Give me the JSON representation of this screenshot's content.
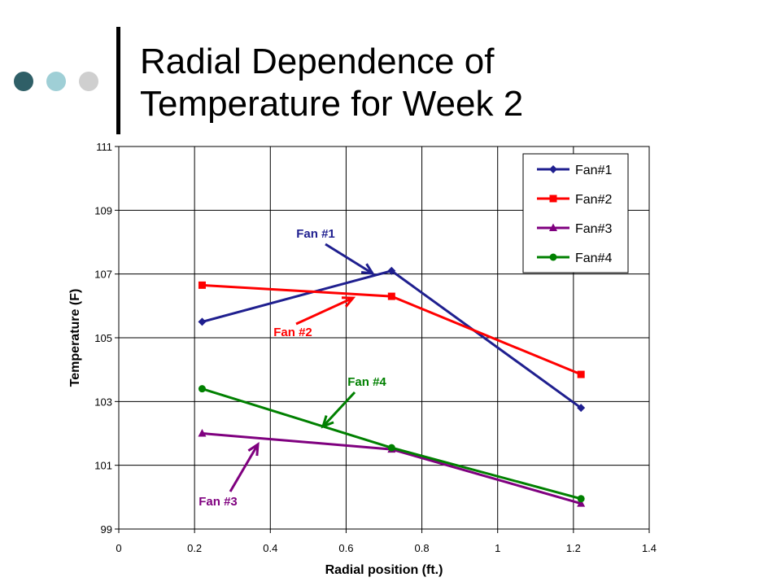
{
  "slide": {
    "title_line1": "Radial Dependence of",
    "title_line2": "Temperature for Week 2",
    "bullet_colors": [
      "#2f5f67",
      "#9fcfd6",
      "#cfcfcf"
    ]
  },
  "chart_data": {
    "type": "line",
    "xlabel": "Radial position (ft.)",
    "ylabel": "Temperature (F)",
    "xlim": [
      0,
      1.4
    ],
    "ylim": [
      99,
      111
    ],
    "xticks": [
      "0",
      "0.2",
      "0.4",
      "0.6",
      "0.8",
      "1",
      "1.2",
      "1.4"
    ],
    "yticks": [
      "99",
      "101",
      "103",
      "105",
      "107",
      "109",
      "111"
    ],
    "grid": true,
    "legend_position": "top-right",
    "series": [
      {
        "name": "Fan#1",
        "color": "#1f1f8f",
        "marker": "diamond",
        "x": [
          0.22,
          0.72,
          1.22
        ],
        "y": [
          105.5,
          107.1,
          102.8
        ]
      },
      {
        "name": "Fan#2",
        "color": "#ff0000",
        "marker": "square",
        "x": [
          0.22,
          0.72,
          1.22
        ],
        "y": [
          106.65,
          106.3,
          103.85
        ]
      },
      {
        "name": "Fan#3",
        "color": "#7f007f",
        "marker": "triangle",
        "x": [
          0.22,
          0.72,
          1.22
        ],
        "y": [
          102.0,
          101.5,
          99.8
        ]
      },
      {
        "name": "Fan#4",
        "color": "#008000",
        "marker": "circle",
        "x": [
          0.22,
          0.72,
          1.22
        ],
        "y": [
          103.4,
          101.55,
          99.95
        ]
      }
    ],
    "annotations": [
      {
        "text": "Fan #1",
        "color": "#1f1f8f"
      },
      {
        "text": "Fan #2",
        "color": "#ff0000"
      },
      {
        "text": "Fan #4",
        "color": "#008000"
      },
      {
        "text": "Fan #3",
        "color": "#7f007f"
      }
    ]
  }
}
